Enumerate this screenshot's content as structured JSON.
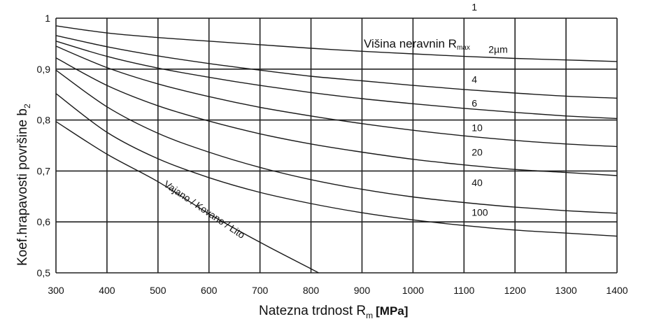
{
  "chart_data": {
    "type": "line",
    "title": "",
    "xlabel": "Natezna trdnost R",
    "xlabel_sub": "m",
    "xlabel_unit": "[MPa]",
    "ylabel": "Koef.hrapavosti površine b",
    "ylabel_sub": "2",
    "xlim": [
      300,
      1400
    ],
    "ylim": [
      0.5,
      1.0
    ],
    "grid": true,
    "x_ticks": [
      300,
      400,
      500,
      600,
      700,
      800,
      900,
      1000,
      1100,
      1200,
      1300,
      1400
    ],
    "x_tick_labels": [
      "300",
      "400",
      "500",
      "600",
      "700",
      "800",
      "900",
      "1000",
      "1100",
      "1200",
      "1300",
      "1400"
    ],
    "y_ticks": [
      0.5,
      0.6,
      0.7,
      0.8,
      0.9,
      1.0
    ],
    "y_tick_labels": [
      "0,5",
      "0,6",
      "0,7",
      "0,8",
      "0,9",
      "1"
    ],
    "annotation": "Višina neravnin R",
    "annotation_sub": "max",
    "series": [
      {
        "name": "1",
        "x": [
          300,
          1400
        ],
        "y": [
          1.0,
          1.0
        ],
        "label_at": [
          1115,
          1.015
        ]
      },
      {
        "name": "2µm",
        "x": [
          300,
          400,
          500,
          600,
          700,
          800,
          900,
          1000,
          1100,
          1200,
          1300,
          1400
        ],
        "y": [
          0.985,
          0.971,
          0.962,
          0.955,
          0.948,
          0.941,
          0.935,
          0.93,
          0.925,
          0.921,
          0.918,
          0.915
        ],
        "label_at": [
          1148,
          0.932
        ]
      },
      {
        "name": "4",
        "x": [
          300,
          400,
          500,
          600,
          700,
          800,
          900,
          1000,
          1100,
          1200,
          1300,
          1400
        ],
        "y": [
          0.966,
          0.944,
          0.926,
          0.911,
          0.898,
          0.886,
          0.877,
          0.868,
          0.86,
          0.853,
          0.847,
          0.843
        ],
        "label_at": [
          1115,
          0.873
        ]
      },
      {
        "name": "6",
        "x": [
          300,
          400,
          500,
          600,
          700,
          800,
          900,
          1000,
          1100,
          1200,
          1300,
          1400
        ],
        "y": [
          0.955,
          0.925,
          0.902,
          0.884,
          0.868,
          0.854,
          0.842,
          0.832,
          0.823,
          0.815,
          0.808,
          0.803
        ],
        "label_at": [
          1115,
          0.826
        ]
      },
      {
        "name": "10",
        "x": [
          300,
          400,
          500,
          600,
          700,
          800,
          900,
          1000,
          1100,
          1200,
          1300,
          1400
        ],
        "y": [
          0.945,
          0.903,
          0.871,
          0.846,
          0.825,
          0.808,
          0.793,
          0.78,
          0.769,
          0.76,
          0.753,
          0.748
        ],
        "label_at": [
          1115,
          0.778
        ]
      },
      {
        "name": "20",
        "x": [
          300,
          400,
          500,
          600,
          700,
          800,
          900,
          1000,
          1100,
          1200,
          1300,
          1400
        ],
        "y": [
          0.922,
          0.868,
          0.828,
          0.798,
          0.773,
          0.753,
          0.737,
          0.723,
          0.712,
          0.703,
          0.697,
          0.691
        ],
        "label_at": [
          1115,
          0.73
        ]
      },
      {
        "name": "40",
        "x": [
          300,
          400,
          500,
          600,
          700,
          800,
          900,
          1000,
          1100,
          1200,
          1300,
          1400
        ],
        "y": [
          0.898,
          0.826,
          0.774,
          0.737,
          0.707,
          0.683,
          0.664,
          0.649,
          0.638,
          0.629,
          0.622,
          0.617
        ],
        "label_at": [
          1115,
          0.67
        ]
      },
      {
        "name": "100",
        "x": [
          300,
          400,
          500,
          600,
          700,
          800,
          900,
          1000,
          1100,
          1200,
          1300,
          1400
        ],
        "y": [
          0.852,
          0.776,
          0.724,
          0.687,
          0.658,
          0.636,
          0.618,
          0.604,
          0.593,
          0.584,
          0.578,
          0.572
        ],
        "label_at": [
          1115,
          0.612
        ]
      },
      {
        "name": "Vajano / Kovano / Lito",
        "x": [
          300,
          400,
          500,
          600,
          700,
          800,
          815
        ],
        "y": [
          0.797,
          0.733,
          0.679,
          0.616,
          0.56,
          0.508,
          0.5
        ],
        "label_at": [
          510,
          0.671
        ],
        "label_angle": 34
      }
    ]
  }
}
